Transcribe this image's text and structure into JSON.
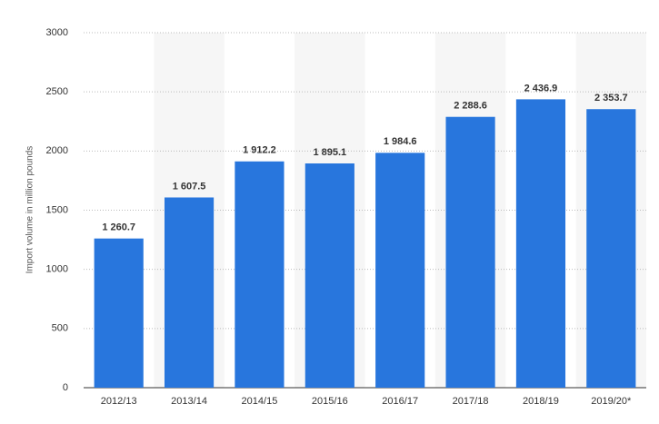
{
  "chart_data": {
    "type": "bar",
    "y_label": "Import volume in million pounds",
    "categories": [
      "2012/13",
      "2013/14",
      "2014/15",
      "2015/16",
      "2016/17",
      "2017/18",
      "2018/19",
      "2019/20*"
    ],
    "values": [
      1260.7,
      1607.5,
      1912.2,
      1895.1,
      1984.6,
      2288.6,
      2436.9,
      2353.7
    ],
    "value_labels": [
      "1 260.7",
      "1 607.5",
      "1 912.2",
      "1 895.1",
      "1 984.6",
      "2 288.6",
      "2 436.9",
      "2 353.7"
    ],
    "color": "#2876dd",
    "ylim": [
      0,
      3000
    ],
    "yticks": [
      0,
      500,
      1000,
      1500,
      2000,
      2500,
      3000
    ],
    "grid": true
  }
}
